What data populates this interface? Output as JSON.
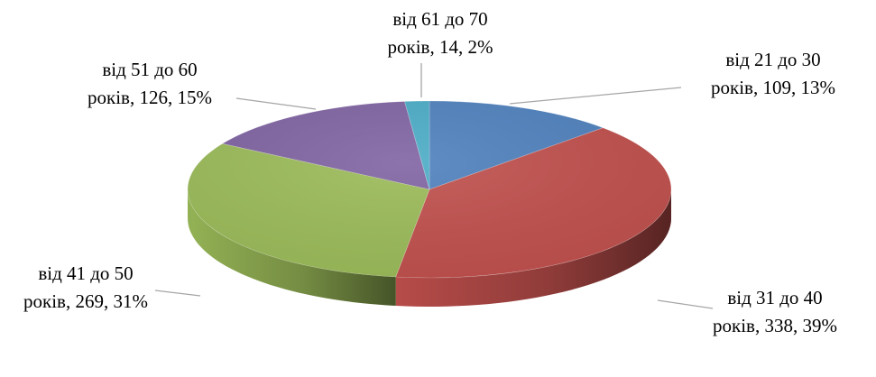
{
  "chart_data": {
    "type": "pie",
    "style": "3d",
    "legend": "none",
    "slices": [
      {
        "label_line1": "від 21 до 30",
        "label_line2": "років, 109, 13%",
        "value": 109,
        "percent": 13,
        "color": "#4f81bd"
      },
      {
        "label_line1": "від 31 до 40",
        "label_line2": "років, 338, 39%",
        "value": 338,
        "percent": 39,
        "color": "#c0504d"
      },
      {
        "label_line1": "від 41 до 50",
        "label_line2": "років, 269, 31%",
        "value": 269,
        "percent": 31,
        "color": "#9bbb59"
      },
      {
        "label_line1": "від 51 до 60",
        "label_line2": "років, 126, 15%",
        "value": 126,
        "percent": 15,
        "color": "#8064a2"
      },
      {
        "label_line1": "від 61 до 70",
        "label_line2": "років, 14, 2%",
        "value": 14,
        "percent": 2,
        "color": "#4bacc6"
      }
    ]
  }
}
